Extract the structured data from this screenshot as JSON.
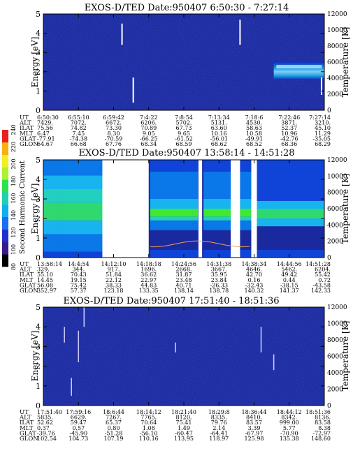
{
  "chart_data": [
    {
      "type": "heatmap",
      "title": "EXOS-D/TED   Date:950407   6:50:30 - 7:27:14",
      "ylabel": "Energy [eV]",
      "y2label": "Temperature [K]",
      "ylim": [
        0,
        5
      ],
      "y2lim": [
        0,
        12000
      ],
      "yticks": [
        "0",
        "1",
        "2",
        "3",
        "4",
        "5"
      ],
      "y2ticks": [
        "0",
        "2000",
        "4000",
        "6000",
        "8000",
        "10000",
        "12000"
      ],
      "band": {
        "start": 0.82,
        "end": 1.0,
        "low": 1.6,
        "high": 2.5
      },
      "spikes": [
        {
          "x": 0.28,
          "y0": 3.4,
          "y1": 4.5
        },
        {
          "x": 0.32,
          "y0": 0.4,
          "y1": 1.7
        },
        {
          "x": 0.7,
          "y0": 3.4,
          "y1": 4.7
        },
        {
          "x": 0.99,
          "y0": 0.8,
          "y1": 1.7
        }
      ],
      "rows": [
        {
          "label": "UT",
          "values": [
            "6:50:30",
            "6:55:10",
            "6:59:42",
            "7:4:22",
            "7:8:54",
            "7:13:34",
            "7:18:6",
            "7:22:46",
            "7:27:14"
          ]
        },
        {
          "label": "ALT",
          "values": [
            "7429.",
            "7072.",
            "6672.",
            "6206.",
            "5702.",
            "5131.",
            "4530.",
            "3871.",
            "3210."
          ]
        },
        {
          "label": "ILAT",
          "values": [
            "75.56",
            "74.82",
            "73.30",
            "70.89",
            "67.73",
            "63.60",
            "58.63",
            "52.37",
            "45.10"
          ]
        },
        {
          "label": "MLT",
          "values": [
            "6.47",
            "7.45",
            "8.30",
            "9.05",
            "9.65",
            "10.16",
            "10.58",
            "10.96",
            "11.29"
          ]
        },
        {
          "label": "GLAT",
          "values": [
            "-77.91",
            "-74.38",
            "-70.59",
            "-66.25",
            "-61.52",
            "-56.01",
            "-49.91",
            "-42.76",
            "-35.05"
          ]
        },
        {
          "label": "GLON",
          "values": [
            "64.67",
            "66.68",
            "67.76",
            "68.34",
            "68.59",
            "68.62",
            "68.52",
            "68.36",
            "68.29"
          ]
        }
      ]
    },
    {
      "type": "heatmap",
      "title": "EXOS-D/TED   Date:950407   13:58:14 - 14:51:28",
      "ylabel": "Energy [eV]",
      "y2label": "Temperature [K]",
      "ylim": [
        0,
        5
      ],
      "y2lim": [
        0,
        12000
      ],
      "yticks": [
        "0",
        "1",
        "2",
        "3",
        "4",
        "5"
      ],
      "y2ticks": [
        "0",
        "2000",
        "4000",
        "6000",
        "8000",
        "10000",
        "12000"
      ],
      "colorbar": {
        "label": "Second Harmonic Current",
        "ticks": [
          "80",
          "100",
          "120",
          "140",
          "160",
          "180",
          "200",
          "220",
          "240"
        ]
      },
      "gaps": [
        [
          0.21,
          0.375
        ],
        [
          0.552,
          0.565
        ],
        [
          0.667,
          0.7
        ],
        [
          0.74,
          0.76
        ]
      ],
      "rows": [
        {
          "label": "UT",
          "values": [
            "13:58:14",
            "14:4:54",
            "14:12:10",
            "14:18:18",
            "14:24:56",
            "14:31:38",
            "14:38:34",
            "14:44:56",
            "14:51:28"
          ]
        },
        {
          "label": "ALT",
          "values": [
            "329.",
            "344.",
            "917.",
            "1696.",
            "2668.",
            "3667.",
            "4646.",
            "5462.",
            "6204."
          ]
        },
        {
          "label": "ILAT",
          "values": [
            "55.10",
            "70.43",
            "51.84",
            "36.62",
            "31.87",
            "35.95",
            "42.70",
            "49.42",
            "55.42"
          ]
        },
        {
          "label": "MLT",
          "values": [
            "14.45",
            "19.15",
            "22.12",
            "22.97",
            "23.48",
            "23.84",
            "0.16",
            "0.44",
            "0.72"
          ]
        },
        {
          "label": "GLAT",
          "values": [
            "56.08",
            "75.42",
            "38.33",
            "44.83",
            "40.71",
            "-26.33",
            "-32.43",
            "-38.15",
            "-43.58"
          ]
        },
        {
          "label": "GLON",
          "values": [
            "352.97",
            "57.37",
            "123.18",
            "133.35",
            "138.14",
            "138.78",
            "140.32",
            "141.37",
            "142.33"
          ]
        }
      ]
    },
    {
      "type": "heatmap",
      "title": "EXOS-D/TED   Date:950407   17:51:40 - 18:51:36",
      "ylabel": "Energy [eV]",
      "y2label": "Temperature [K]",
      "ylim": [
        0,
        5
      ],
      "y2lim": [
        0,
        12000
      ],
      "yticks": [
        "0",
        "1",
        "2",
        "3",
        "4",
        "5"
      ],
      "y2ticks": [
        "0",
        "2000",
        "4000",
        "6000",
        "8000",
        "10000",
        "12000"
      ],
      "spikes": [
        {
          "x": 0.075,
          "y0": 3.2,
          "y1": 4.0
        },
        {
          "x": 0.1,
          "y0": 0.5,
          "y1": 1.4
        },
        {
          "x": 0.125,
          "y0": 2.2,
          "y1": 3.8
        },
        {
          "x": 0.145,
          "y0": 4.0,
          "y1": 5.0
        },
        {
          "x": 0.47,
          "y0": 2.7,
          "y1": 3.2
        },
        {
          "x": 0.775,
          "y0": 2.7,
          "y1": 4.0
        },
        {
          "x": 0.82,
          "y0": 1.8,
          "y1": 2.6
        }
      ],
      "rows": [
        {
          "label": "UT",
          "values": [
            "17:51:40",
            "17:59:16",
            "18:6:44",
            "18:14:12",
            "18:21:40",
            "18:29:8",
            "18:36:44",
            "18:44:12",
            "18:51:36"
          ]
        },
        {
          "label": "ALT",
          "values": [
            "5835.",
            "6629.",
            "7267.",
            "7765.",
            "8120.",
            "8335.",
            "8410.",
            "8342.",
            "8136."
          ]
        },
        {
          "label": "ILAT",
          "values": [
            "52.62",
            "59.47",
            "65.37",
            "70.64",
            "75.41",
            "79.76",
            "83.57",
            "999.00",
            "83.58"
          ]
        },
        {
          "label": "MLT",
          "values": [
            "0.37",
            "0.57",
            "0.80",
            "1.08",
            "1.49",
            "2.14",
            "3.39",
            "5.77",
            "8.38"
          ]
        },
        {
          "label": "GLAT",
          "values": [
            "-39.76",
            "-45.90",
            "-51.28",
            "-56.10",
            "-60.47",
            "-64.41",
            "-67.97",
            "-70.90",
            "-72.97"
          ]
        },
        {
          "label": "GLON",
          "values": [
            "102.54",
            "104.73",
            "107.19",
            "110.16",
            "113.95",
            "118.97",
            "125.98",
            "135.38",
            "148.60"
          ]
        }
      ]
    }
  ]
}
